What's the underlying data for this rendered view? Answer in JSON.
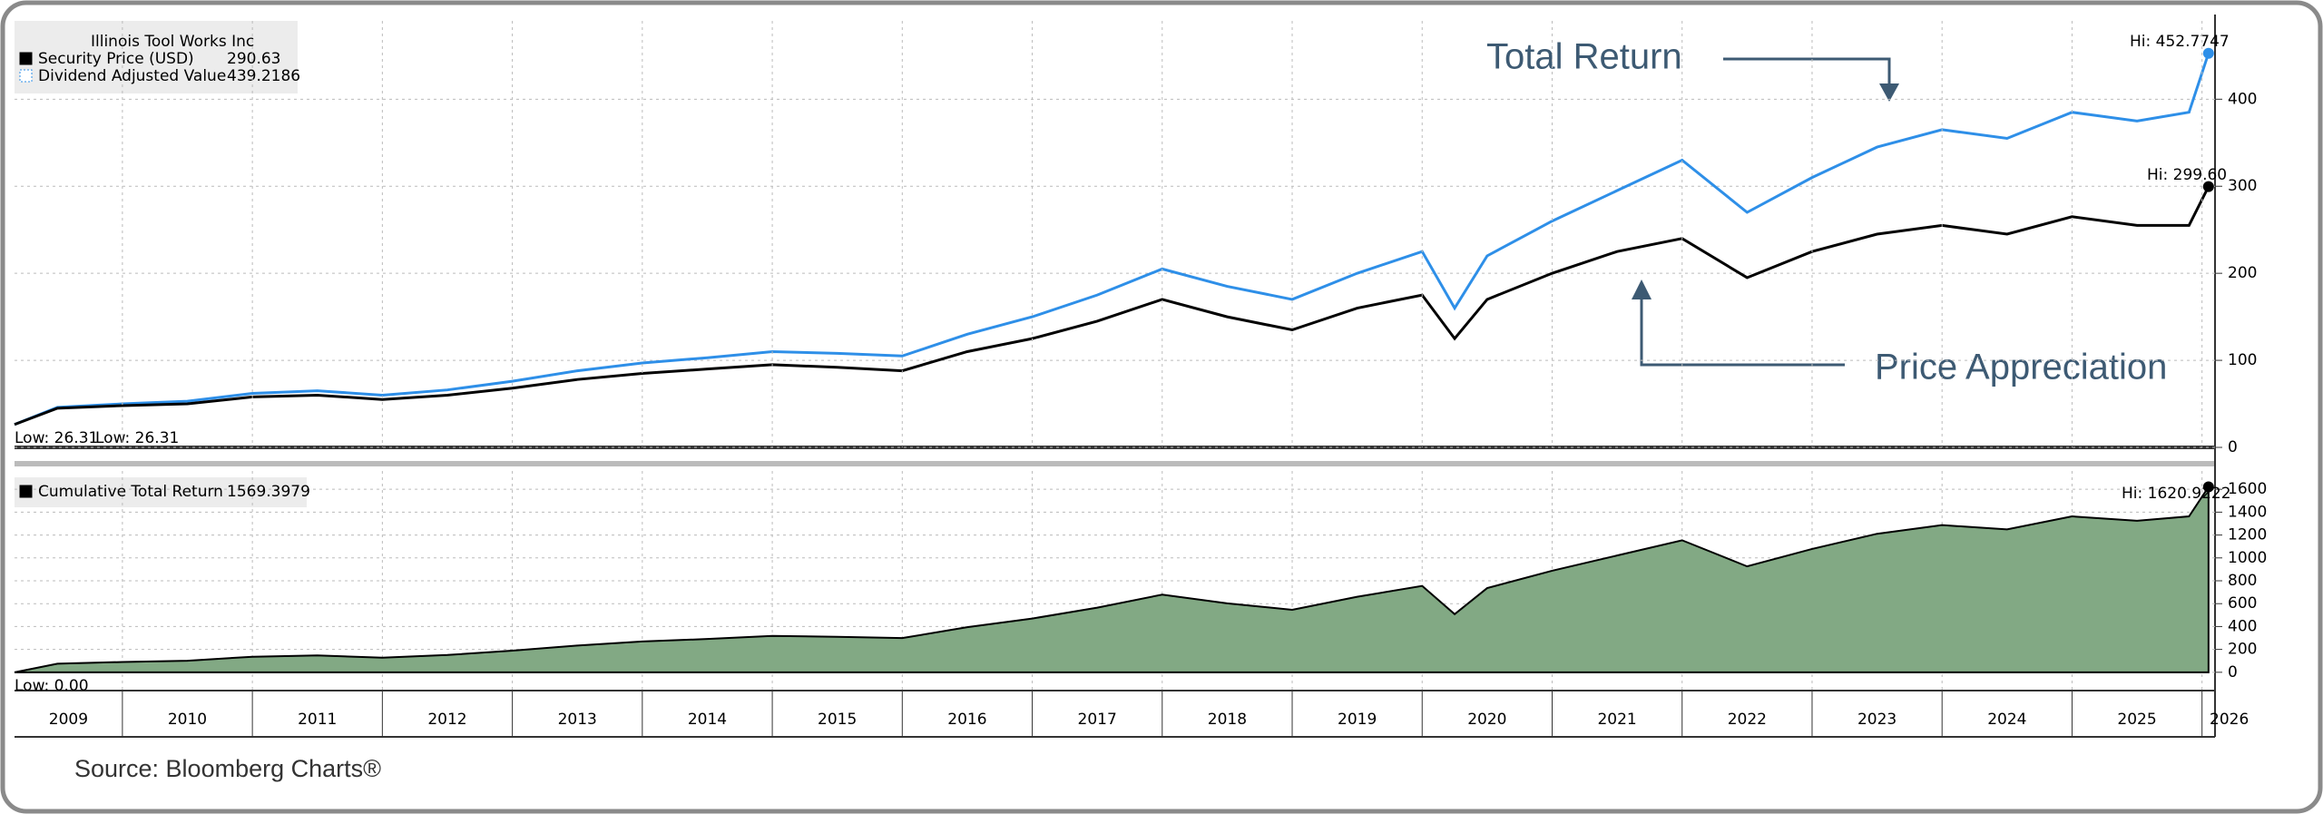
{
  "chart_data": [
    {
      "type": "line",
      "title": "Illinois Tool Works Inc",
      "x": [
        2009.17,
        2009.5,
        2010.0,
        2010.5,
        2011.0,
        2011.5,
        2012.0,
        2012.5,
        2013.0,
        2013.5,
        2014.0,
        2014.5,
        2015.0,
        2015.5,
        2016.0,
        2016.5,
        2017.0,
        2017.5,
        2018.0,
        2018.5,
        2019.0,
        2019.5,
        2020.0,
        2020.25,
        2020.5,
        2021.0,
        2021.5,
        2022.0,
        2022.5,
        2023.0,
        2023.5,
        2024.0,
        2024.5,
        2025.0,
        2025.5,
        2025.9,
        2026.05
      ],
      "series": [
        {
          "name": "Security Price (USD)",
          "legend_value": 290.63,
          "color": "#000000",
          "low_label": "Low: 26.31",
          "high_label": "Hi: 299.60",
          "values": [
            26.31,
            45,
            48,
            50,
            58,
            60,
            55,
            60,
            68,
            78,
            85,
            90,
            95,
            92,
            88,
            110,
            125,
            145,
            170,
            150,
            135,
            160,
            175,
            125,
            170,
            200,
            225,
            240,
            195,
            225,
            245,
            255,
            245,
            265,
            255,
            255,
            299.6
          ]
        },
        {
          "name": "Dividend Adjusted Value",
          "legend_value": 439.2186,
          "color": "#2e8fe8",
          "low_label": "Low: 26.31",
          "high_label": "Hi: 452.7747",
          "values": [
            26.31,
            46,
            50,
            53,
            62,
            65,
            60,
            66,
            76,
            88,
            97,
            103,
            110,
            108,
            105,
            130,
            150,
            175,
            205,
            185,
            170,
            200,
            225,
            160,
            220,
            260,
            295,
            330,
            270,
            310,
            345,
            365,
            355,
            385,
            375,
            385,
            452.77
          ]
        }
      ],
      "xlim": [
        2009.17,
        2026.1
      ],
      "ylim": [
        0,
        490
      ],
      "yticks": [
        0,
        100,
        200,
        300,
        400
      ],
      "grid": true,
      "annotations": [
        "Total Return",
        "Price Appreciation"
      ]
    },
    {
      "type": "area",
      "x": [
        2009.17,
        2009.5,
        2010.0,
        2010.5,
        2011.0,
        2011.5,
        2012.0,
        2012.5,
        2013.0,
        2013.5,
        2014.0,
        2014.5,
        2015.0,
        2015.5,
        2016.0,
        2016.5,
        2017.0,
        2017.5,
        2018.0,
        2018.5,
        2019.0,
        2019.5,
        2020.0,
        2020.25,
        2020.5,
        2021.0,
        2021.5,
        2022.0,
        2022.5,
        2023.0,
        2023.5,
        2024.0,
        2024.5,
        2025.0,
        2025.5,
        2025.9,
        2026.05
      ],
      "series": [
        {
          "name": "Cumulative Total Return",
          "legend_value": 1569.3979,
          "color": "#82a984",
          "low_label": "Low: 0.00",
          "high_label": "Hi: 1620.9222",
          "values": [
            0,
            75,
            90,
            101,
            136,
            147,
            128,
            151,
            189,
            234,
            269,
            291,
            318,
            310,
            299,
            394,
            470,
            565,
            679,
            603,
            546,
            660,
            755,
            508,
            736,
            888,
            1021,
            1154,
            926,
            1078,
            1211,
            1287,
            1249,
            1363,
            1325,
            1363,
            1620.92
          ]
        }
      ],
      "xlim": [
        2009.17,
        2026.1
      ],
      "ylim": [
        -160,
        1760
      ],
      "yticks": [
        0,
        200,
        400,
        600,
        800,
        1000,
        1200,
        1400,
        1600
      ],
      "xticks": [
        2009,
        2010,
        2011,
        2012,
        2013,
        2014,
        2015,
        2016,
        2017,
        2018,
        2019,
        2020,
        2021,
        2022,
        2023,
        2024,
        2025,
        2026
      ],
      "grid": true
    }
  ],
  "source": "Source:  Bloomberg Charts®"
}
